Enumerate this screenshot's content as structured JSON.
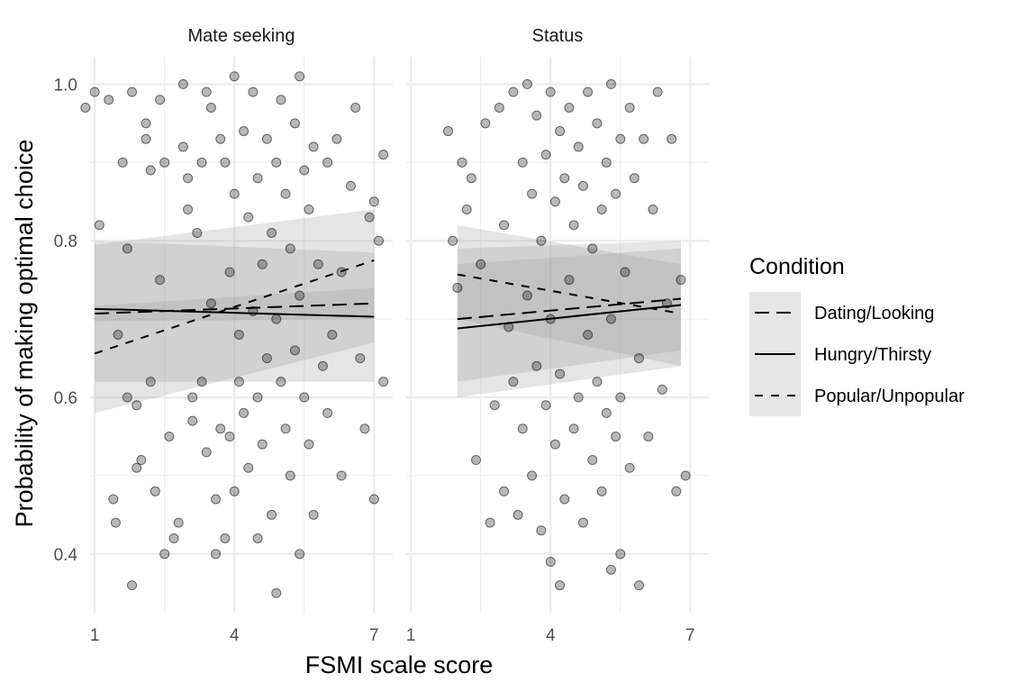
{
  "chart_data": {
    "type": "scatter",
    "facets": [
      {
        "label": "Mate seeking",
        "points_description_free": true,
        "points": [
          [
            0.8,
            0.97
          ],
          [
            1.0,
            0.99
          ],
          [
            1.1,
            0.82
          ],
          [
            1.3,
            0.98
          ],
          [
            1.4,
            0.47
          ],
          [
            1.45,
            0.44
          ],
          [
            1.5,
            0.68
          ],
          [
            1.6,
            0.9
          ],
          [
            1.7,
            0.79
          ],
          [
            1.7,
            0.6
          ],
          [
            1.8,
            0.99
          ],
          [
            1.8,
            0.36
          ],
          [
            1.9,
            0.59
          ],
          [
            1.9,
            0.51
          ],
          [
            2.0,
            0.52
          ],
          [
            2.1,
            0.95
          ],
          [
            2.1,
            0.93
          ],
          [
            2.2,
            0.62
          ],
          [
            2.2,
            0.89
          ],
          [
            2.3,
            0.48
          ],
          [
            2.4,
            0.75
          ],
          [
            2.4,
            0.98
          ],
          [
            2.5,
            0.9
          ],
          [
            2.5,
            0.4
          ],
          [
            2.6,
            0.55
          ],
          [
            2.7,
            0.42
          ],
          [
            2.8,
            0.44
          ],
          [
            2.9,
            1.0
          ],
          [
            2.9,
            0.92
          ],
          [
            3.0,
            0.88
          ],
          [
            3.0,
            0.84
          ],
          [
            3.1,
            0.6
          ],
          [
            3.1,
            0.57
          ],
          [
            3.2,
            0.81
          ],
          [
            3.3,
            0.9
          ],
          [
            3.3,
            0.62
          ],
          [
            3.4,
            0.53
          ],
          [
            3.4,
            0.99
          ],
          [
            3.5,
            0.97
          ],
          [
            3.5,
            0.72
          ],
          [
            3.6,
            0.47
          ],
          [
            3.6,
            0.4
          ],
          [
            3.7,
            0.93
          ],
          [
            3.7,
            0.56
          ],
          [
            3.8,
            0.9
          ],
          [
            3.8,
            0.42
          ],
          [
            3.9,
            0.76
          ],
          [
            3.9,
            0.55
          ],
          [
            4.0,
            1.01
          ],
          [
            4.0,
            0.86
          ],
          [
            4.0,
            0.48
          ],
          [
            4.1,
            0.68
          ],
          [
            4.1,
            0.62
          ],
          [
            4.2,
            0.94
          ],
          [
            4.2,
            0.58
          ],
          [
            4.3,
            0.83
          ],
          [
            4.3,
            0.51
          ],
          [
            4.4,
            0.99
          ],
          [
            4.4,
            0.71
          ],
          [
            4.5,
            0.88
          ],
          [
            4.5,
            0.6
          ],
          [
            4.5,
            0.42
          ],
          [
            4.6,
            0.77
          ],
          [
            4.6,
            0.54
          ],
          [
            4.7,
            0.93
          ],
          [
            4.7,
            0.65
          ],
          [
            4.8,
            0.81
          ],
          [
            4.8,
            0.45
          ],
          [
            4.9,
            0.9
          ],
          [
            4.9,
            0.7
          ],
          [
            4.9,
            0.35
          ],
          [
            5.0,
            0.98
          ],
          [
            5.0,
            0.62
          ],
          [
            5.1,
            0.86
          ],
          [
            5.1,
            0.56
          ],
          [
            5.2,
            0.79
          ],
          [
            5.2,
            0.5
          ],
          [
            5.3,
            0.95
          ],
          [
            5.3,
            0.66
          ],
          [
            5.4,
            1.01
          ],
          [
            5.4,
            0.73
          ],
          [
            5.4,
            0.4
          ],
          [
            5.5,
            0.89
          ],
          [
            5.5,
            0.6
          ],
          [
            5.6,
            0.84
          ],
          [
            5.6,
            0.54
          ],
          [
            5.7,
            0.92
          ],
          [
            5.7,
            0.45
          ],
          [
            5.8,
            0.77
          ],
          [
            5.9,
            0.64
          ],
          [
            6.0,
            0.9
          ],
          [
            6.0,
            0.58
          ],
          [
            6.1,
            0.68
          ],
          [
            6.2,
            0.93
          ],
          [
            6.3,
            0.5
          ],
          [
            6.3,
            0.76
          ],
          [
            6.5,
            0.87
          ],
          [
            6.6,
            0.97
          ],
          [
            6.7,
            0.65
          ],
          [
            6.8,
            0.56
          ],
          [
            6.9,
            0.83
          ],
          [
            7.0,
            0.85
          ],
          [
            7.0,
            0.47
          ],
          [
            7.1,
            0.8
          ],
          [
            7.2,
            0.91
          ],
          [
            7.2,
            0.62
          ]
        ]
      },
      {
        "label": "Status",
        "points": [
          [
            1.8,
            0.94
          ],
          [
            1.9,
            0.8
          ],
          [
            2.0,
            0.74
          ],
          [
            2.1,
            0.9
          ],
          [
            2.2,
            0.84
          ],
          [
            2.3,
            0.88
          ],
          [
            2.4,
            0.52
          ],
          [
            2.5,
            0.77
          ],
          [
            2.6,
            0.95
          ],
          [
            2.7,
            0.44
          ],
          [
            2.8,
            0.59
          ],
          [
            2.9,
            0.97
          ],
          [
            3.0,
            0.48
          ],
          [
            3.0,
            0.82
          ],
          [
            3.1,
            0.69
          ],
          [
            3.2,
            0.99
          ],
          [
            3.2,
            0.62
          ],
          [
            3.3,
            0.45
          ],
          [
            3.4,
            0.9
          ],
          [
            3.4,
            0.56
          ],
          [
            3.5,
            1.0
          ],
          [
            3.5,
            0.73
          ],
          [
            3.6,
            0.86
          ],
          [
            3.6,
            0.5
          ],
          [
            3.7,
            0.96
          ],
          [
            3.7,
            0.64
          ],
          [
            3.8,
            0.8
          ],
          [
            3.8,
            0.43
          ],
          [
            3.9,
            0.91
          ],
          [
            3.9,
            0.59
          ],
          [
            4.0,
            0.99
          ],
          [
            4.0,
            0.7
          ],
          [
            4.0,
            0.39
          ],
          [
            4.1,
            0.85
          ],
          [
            4.1,
            0.54
          ],
          [
            4.2,
            0.94
          ],
          [
            4.2,
            0.63
          ],
          [
            4.2,
            0.36
          ],
          [
            4.3,
            0.88
          ],
          [
            4.3,
            0.47
          ],
          [
            4.4,
            0.97
          ],
          [
            4.4,
            0.75
          ],
          [
            4.5,
            0.82
          ],
          [
            4.5,
            0.56
          ],
          [
            4.6,
            0.92
          ],
          [
            4.6,
            0.6
          ],
          [
            4.7,
            0.87
          ],
          [
            4.7,
            0.44
          ],
          [
            4.8,
            0.99
          ],
          [
            4.8,
            0.68
          ],
          [
            4.9,
            0.79
          ],
          [
            4.9,
            0.52
          ],
          [
            5.0,
            0.95
          ],
          [
            5.0,
            0.62
          ],
          [
            5.1,
            0.84
          ],
          [
            5.1,
            0.48
          ],
          [
            5.2,
            0.9
          ],
          [
            5.2,
            0.58
          ],
          [
            5.3,
            1.0
          ],
          [
            5.3,
            0.7
          ],
          [
            5.3,
            0.38
          ],
          [
            5.4,
            0.86
          ],
          [
            5.4,
            0.55
          ],
          [
            5.5,
            0.93
          ],
          [
            5.5,
            0.6
          ],
          [
            5.5,
            0.4
          ],
          [
            5.6,
            0.76
          ],
          [
            5.7,
            0.97
          ],
          [
            5.7,
            0.51
          ],
          [
            5.8,
            0.88
          ],
          [
            5.9,
            0.65
          ],
          [
            5.9,
            0.36
          ],
          [
            6.0,
            0.93
          ],
          [
            6.1,
            0.55
          ],
          [
            6.2,
            0.84
          ],
          [
            6.3,
            0.99
          ],
          [
            6.4,
            0.61
          ],
          [
            6.5,
            0.72
          ],
          [
            6.6,
            0.93
          ],
          [
            6.7,
            0.48
          ],
          [
            6.8,
            0.75
          ],
          [
            6.9,
            0.5
          ]
        ]
      }
    ],
    "x_axis": {
      "title": "FSMI scale score",
      "ticks": [
        1,
        4,
        7
      ],
      "range": [
        0.9,
        7.4
      ]
    },
    "y_axis": {
      "title": "Probability of making optimal choice",
      "ticks": [
        0.4,
        0.6,
        0.8,
        1.0
      ],
      "tick_labels": [
        "0.4",
        "0.6",
        "0.8",
        "1.0"
      ],
      "range": [
        0.325,
        1.035
      ]
    },
    "grid": true,
    "legend": {
      "title": "Condition",
      "position": "right",
      "entries": [
        {
          "label": "Dating/Looking",
          "linetype": "longdash"
        },
        {
          "label": "Hungry/Thirsty",
          "linetype": "solid"
        },
        {
          "label": "Popular/Unpopular",
          "linetype": "dashed"
        }
      ]
    },
    "regression_lines": [
      {
        "facet": "Mate seeking",
        "condition": "Dating/Looking",
        "x": [
          1,
          7
        ],
        "y": [
          0.707,
          0.72
        ],
        "ci": [
          [
            0.697,
            0.717
          ],
          [
            0.7,
            0.74
          ]
        ]
      },
      {
        "facet": "Mate seeking",
        "condition": "Hungry/Thirsty",
        "x": [
          1,
          7
        ],
        "y": [
          0.713,
          0.703
        ],
        "ci": [
          [
            0.62,
            0.8
          ],
          [
            0.62,
            0.785
          ]
        ]
      },
      {
        "facet": "Mate seeking",
        "condition": "Popular/Unpopular",
        "x": [
          1,
          7
        ],
        "y": [
          0.656,
          0.775
        ],
        "ci": [
          [
            0.58,
            0.795
          ],
          [
            0.67,
            0.84
          ]
        ]
      },
      {
        "facet": "Status",
        "condition": "Dating/Looking",
        "x": [
          2,
          6.8
        ],
        "y": [
          0.7,
          0.726
        ],
        "ci": [
          [
            0.62,
            0.77
          ],
          [
            0.66,
            0.79
          ]
        ]
      },
      {
        "facet": "Status",
        "condition": "Hungry/Thirsty",
        "x": [
          2,
          6.8
        ],
        "y": [
          0.688,
          0.718
        ],
        "ci": [
          [
            0.6,
            0.79
          ],
          [
            0.64,
            0.8
          ]
        ]
      },
      {
        "facet": "Status",
        "condition": "Popular/Unpopular",
        "x": [
          2,
          6.8
        ],
        "y": [
          0.757,
          0.707
        ],
        "ci": [
          [
            0.7,
            0.82
          ],
          [
            0.64,
            0.77
          ]
        ]
      }
    ],
    "colors": {
      "point": "#000000",
      "ci_band": "#999999",
      "grid": "#ebebeb",
      "legend_key_bg": "#e5e5e5"
    }
  }
}
